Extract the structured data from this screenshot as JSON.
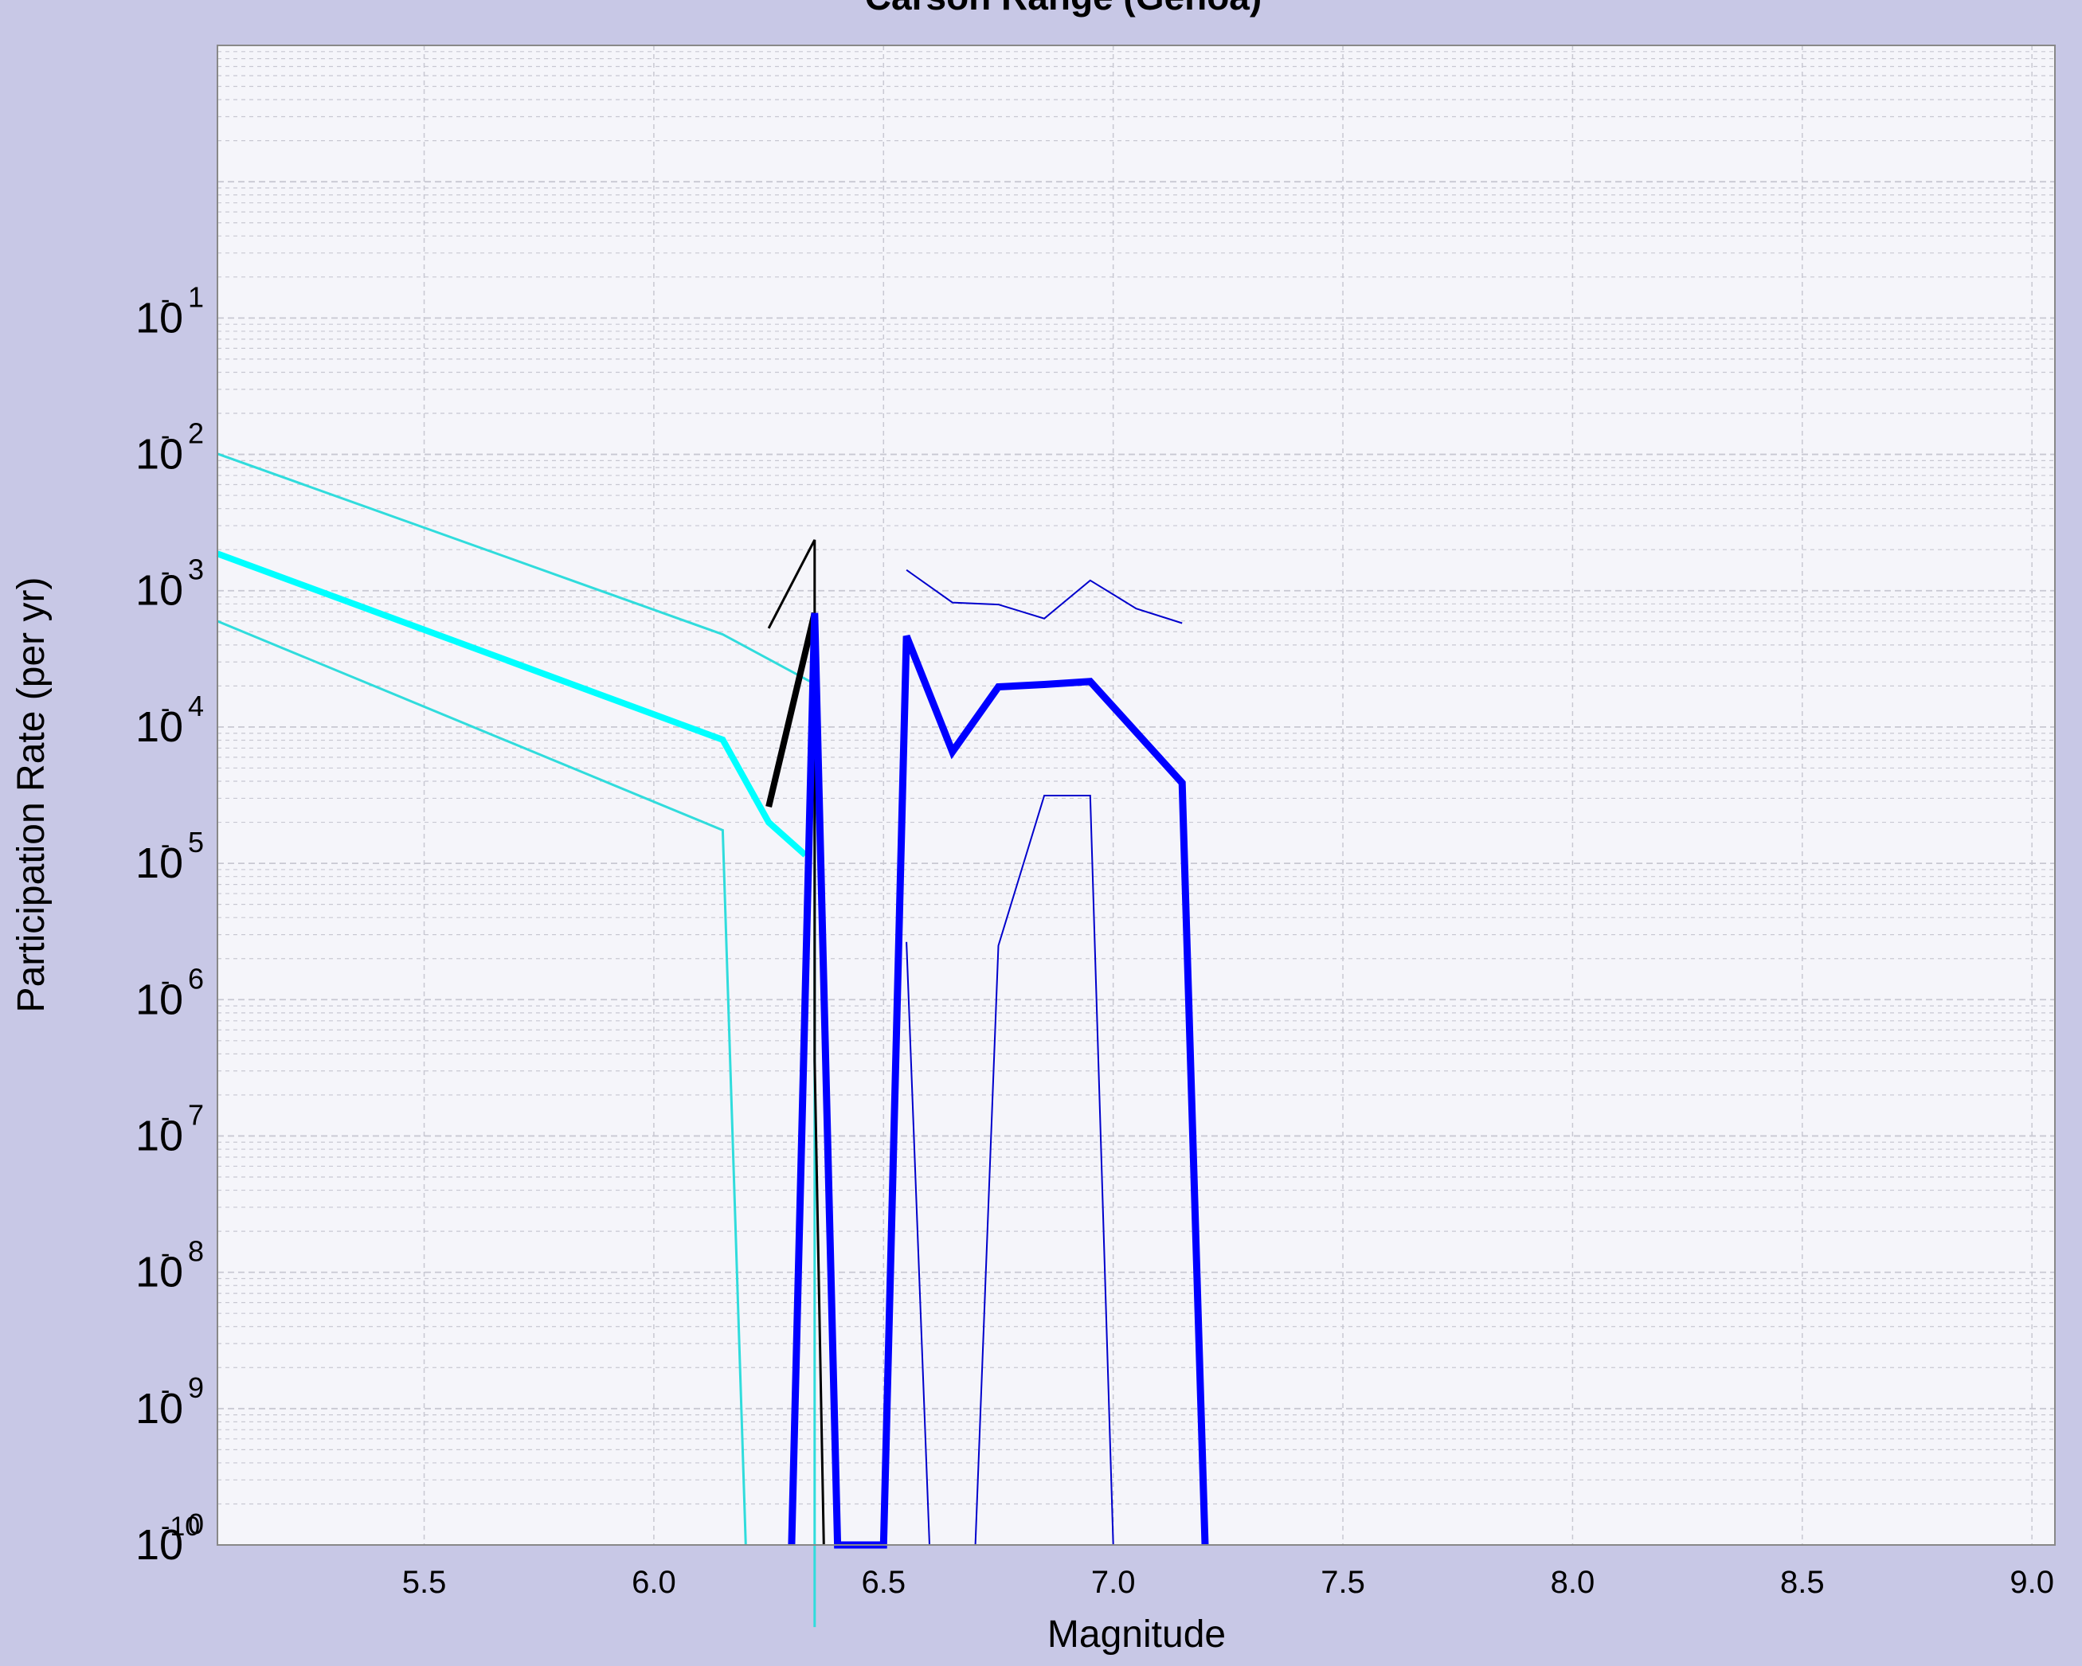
{
  "chart_data": {
    "type": "line",
    "title": "Carson Range (Genoa)",
    "xlabel": "Magnitude",
    "ylabel": "Participation Rate (per yr)",
    "x_scale": "linear",
    "y_scale": "log",
    "xlim": [
      5.05,
      9.05
    ],
    "ylim": [
      1e-10,
      10
    ],
    "x_ticks": [
      5.5,
      6.0,
      6.5,
      7.0,
      7.5,
      8.0,
      8.5,
      9.0
    ],
    "x_tick_labels": [
      "5.5",
      "6.0",
      "6.5",
      "7.0",
      "7.5",
      "8.0",
      "8.5",
      "9.0"
    ],
    "y_tick_labels": [
      {
        "base": "10",
        "exp": "0",
        "prefix": "-10"
      },
      {
        "base": "10",
        "exp": "9",
        "prefix": "-"
      },
      {
        "base": "10",
        "exp": "8",
        "prefix": "-"
      },
      {
        "base": "10",
        "exp": "7",
        "prefix": "-"
      },
      {
        "base": "10",
        "exp": "6",
        "prefix": "-"
      },
      {
        "base": "10",
        "exp": "5",
        "prefix": "-"
      },
      {
        "base": "10",
        "exp": "4",
        "prefix": "-"
      },
      {
        "base": "10",
        "exp": "3",
        "prefix": "-"
      },
      {
        "base": "10",
        "exp": "2",
        "prefix": "-"
      },
      {
        "base": "10",
        "exp": "1",
        "prefix": "-"
      }
    ],
    "grid": true,
    "colors": {
      "outer_background": "#c8c8e6",
      "plot_background": "#f5f5fa",
      "grid": "#c8c8d2",
      "frame": "#888888"
    },
    "series": [
      {
        "color": "#30dcdc",
        "width": 3,
        "points": [
          [
            5.05,
            0.0101
          ],
          [
            6.15,
            0.000478
          ],
          [
            6.35,
            0.000207
          ],
          [
            6.35,
            2.5e-11
          ]
        ]
      },
      {
        "color": "#30dcdc",
        "width": 3,
        "points": [
          [
            5.05,
            0.000598
          ],
          [
            6.15,
            1.75e-05
          ],
          [
            6.2,
            1e-10
          ]
        ]
      },
      {
        "color": "#00ffff",
        "width": 8,
        "points": [
          [
            5.05,
            0.00187
          ],
          [
            6.15,
            8.07e-05
          ],
          [
            6.25,
            2e-05
          ],
          [
            6.33,
            1.15e-05
          ]
        ]
      },
      {
        "color": "#000000",
        "width": 3,
        "points": [
          [
            6.25,
            0.00053
          ],
          [
            6.35,
            0.00236
          ],
          [
            6.35,
            3.55e-07
          ],
          [
            6.37,
            1e-10
          ]
        ]
      },
      {
        "color": "#000000",
        "width": 8,
        "points": [
          [
            6.25,
            2.6e-05
          ],
          [
            6.35,
            0.000686
          ]
        ]
      },
      {
        "color": "#0000ff",
        "width": 9,
        "points": [
          [
            6.3,
            1e-10
          ],
          [
            6.35,
            0.000686
          ],
          [
            6.4,
            1e-10
          ],
          [
            6.5,
            1e-10
          ],
          [
            6.55,
            0.000465
          ],
          [
            6.65,
            6.58e-05
          ],
          [
            6.75,
            0.000197
          ],
          [
            6.85,
            0.000205
          ],
          [
            6.95,
            0.000216
          ],
          [
            7.15,
            3.89e-05
          ],
          [
            7.2,
            1e-10
          ]
        ]
      },
      {
        "color": "#0000cc",
        "width": 2,
        "points": [
          [
            6.55,
            0.00142
          ],
          [
            6.65,
            0.000819
          ],
          [
            6.75,
            0.000792
          ],
          [
            6.85,
            0.000625
          ],
          [
            6.95,
            0.00119
          ],
          [
            7.05,
            0.000739
          ],
          [
            7.15,
            0.000578
          ]
        ]
      },
      {
        "color": "#0000cc",
        "width": 2,
        "points": [
          [
            6.55,
            2.65e-06
          ],
          [
            6.6,
            1e-10
          ]
        ]
      },
      {
        "color": "#0000cc",
        "width": 2,
        "points": [
          [
            6.7,
            1e-10
          ],
          [
            6.75,
            2.49e-06
          ],
          [
            6.85,
            3.14e-05
          ],
          [
            6.95,
            3.14e-05
          ],
          [
            7.0,
            1e-10
          ]
        ]
      }
    ]
  }
}
